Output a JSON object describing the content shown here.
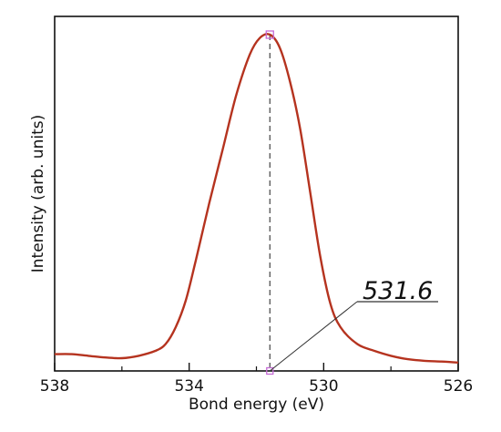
{
  "chart_data": {
    "type": "line",
    "title": "",
    "xlabel": "Bond energy (eV)",
    "ylabel": "Intensity (arb. units)",
    "x_reversed": true,
    "xlim": [
      538,
      526
    ],
    "ylim": [
      0,
      1
    ],
    "grid": false,
    "legend": "none",
    "x_ticks": [
      538,
      534,
      530,
      526
    ],
    "x_minor_ticks": [
      536,
      532,
      528
    ],
    "series": [
      {
        "color": "#b5331f",
        "points": [
          [
            538.0,
            0.05
          ],
          [
            537.5,
            0.05
          ],
          [
            537.0,
            0.045
          ],
          [
            536.5,
            0.04
          ],
          [
            536.0,
            0.038
          ],
          [
            535.5,
            0.045
          ],
          [
            535.0,
            0.06
          ],
          [
            534.7,
            0.08
          ],
          [
            534.4,
            0.13
          ],
          [
            534.1,
            0.21
          ],
          [
            533.8,
            0.33
          ],
          [
            533.4,
            0.5
          ],
          [
            533.0,
            0.66
          ],
          [
            532.6,
            0.82
          ],
          [
            532.2,
            0.94
          ],
          [
            531.9,
            0.99
          ],
          [
            531.6,
            1.0
          ],
          [
            531.3,
            0.96
          ],
          [
            531.0,
            0.86
          ],
          [
            530.7,
            0.72
          ],
          [
            530.4,
            0.53
          ],
          [
            530.1,
            0.34
          ],
          [
            529.8,
            0.2
          ],
          [
            529.5,
            0.13
          ],
          [
            529.0,
            0.08
          ],
          [
            528.5,
            0.06
          ],
          [
            528.0,
            0.045
          ],
          [
            527.5,
            0.035
          ],
          [
            527.0,
            0.03
          ],
          [
            526.5,
            0.028
          ],
          [
            526.0,
            0.025
          ]
        ]
      }
    ],
    "peak": {
      "x": 531.6,
      "y": 1.0,
      "label": "531.6"
    }
  }
}
